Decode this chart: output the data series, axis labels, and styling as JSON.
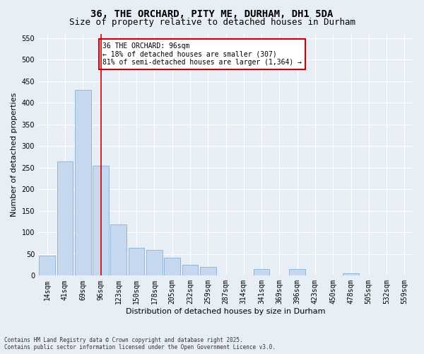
{
  "title": "36, THE ORCHARD, PITY ME, DURHAM, DH1 5DA",
  "subtitle": "Size of property relative to detached houses in Durham",
  "xlabel": "Distribution of detached houses by size in Durham",
  "ylabel": "Number of detached properties",
  "categories": [
    "14sqm",
    "41sqm",
    "69sqm",
    "96sqm",
    "123sqm",
    "150sqm",
    "178sqm",
    "205sqm",
    "232sqm",
    "259sqm",
    "287sqm",
    "314sqm",
    "341sqm",
    "369sqm",
    "396sqm",
    "423sqm",
    "450sqm",
    "478sqm",
    "505sqm",
    "532sqm",
    "559sqm"
  ],
  "values": [
    47,
    265,
    430,
    255,
    118,
    65,
    60,
    42,
    25,
    20,
    0,
    0,
    15,
    0,
    15,
    0,
    0,
    5,
    0,
    0,
    0
  ],
  "bar_color": "#c5d8ee",
  "bar_edgecolor": "#8ab0d4",
  "vline_x": 3,
  "vline_color": "#cc0000",
  "annotation_text": "36 THE ORCHARD: 96sqm\n← 18% of detached houses are smaller (307)\n81% of semi-detached houses are larger (1,364) →",
  "annotation_box_color": "#cc0000",
  "ylim": [
    0,
    560
  ],
  "yticks": [
    0,
    50,
    100,
    150,
    200,
    250,
    300,
    350,
    400,
    450,
    500,
    550
  ],
  "bg_color": "#e8eef5",
  "plot_bg_color": "#e8eef5",
  "footnote": "Contains HM Land Registry data © Crown copyright and database right 2025.\nContains public sector information licensed under the Open Government Licence v3.0.",
  "title_fontsize": 10,
  "subtitle_fontsize": 9,
  "label_fontsize": 8,
  "tick_fontsize": 7,
  "annot_fontsize": 7,
  "footnote_fontsize": 5.5
}
